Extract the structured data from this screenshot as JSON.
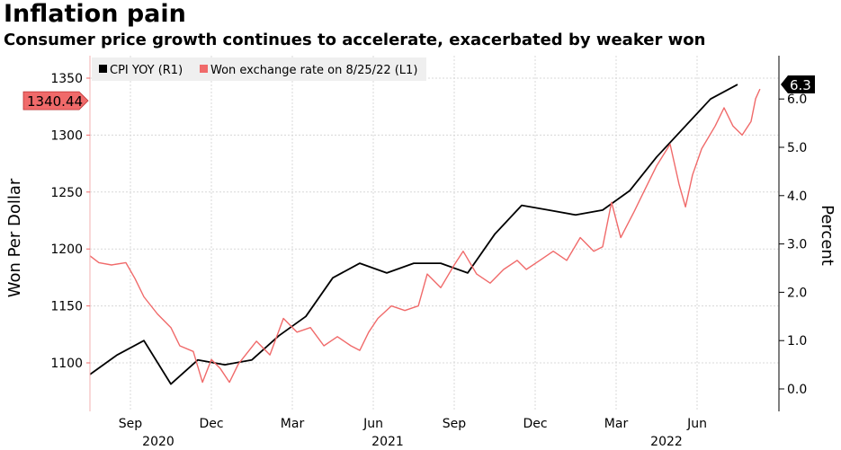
{
  "chart_data": {
    "type": "line",
    "title": "Inflation pain",
    "subtitle": "Consumer price growth continues to accelerate, exacerbated by weaker won",
    "x_unit": "months since mid-July 2020",
    "x_ticks": [
      {
        "label": "Sep",
        "x": 1.5
      },
      {
        "label": "Dec",
        "x": 4.5
      },
      {
        "label": "Mar",
        "x": 7.5
      },
      {
        "label": "Jun",
        "x": 10.5
      },
      {
        "label": "Sep",
        "x": 13.5
      },
      {
        "label": "Dec",
        "x": 16.5
      },
      {
        "label": "Mar",
        "x": 19.5
      },
      {
        "label": "Jun",
        "x": 22.5
      }
    ],
    "year_labels": [
      "2020",
      "2021",
      "2022"
    ],
    "xlim": [
      0,
      25.5
    ],
    "left_axis": {
      "label": "Won Per Dollar",
      "ylim": [
        1070,
        1360
      ],
      "ticks": [
        1100,
        1150,
        1200,
        1250,
        1300,
        1350
      ]
    },
    "right_axis": {
      "label": "Percent",
      "ylim": [
        -0.3,
        6.6
      ],
      "ticks": [
        "0.0",
        "1.0",
        "2.0",
        "3.0",
        "4.0",
        "5.0",
        "6.0"
      ]
    },
    "grid": true,
    "legend_position": "top-left",
    "series": [
      {
        "name": "CPI YOY (R1)",
        "axis": "right",
        "color": "#000000",
        "last_label": "6.3",
        "points": [
          [
            0,
            0.3
          ],
          [
            1,
            0.7
          ],
          [
            2,
            1.0
          ],
          [
            3,
            0.1
          ],
          [
            4,
            0.6
          ],
          [
            5,
            0.5
          ],
          [
            6,
            0.6
          ],
          [
            7,
            1.1
          ],
          [
            8,
            1.5
          ],
          [
            9,
            2.3
          ],
          [
            10,
            2.6
          ],
          [
            11,
            2.4
          ],
          [
            12,
            2.6
          ],
          [
            13,
            2.6
          ],
          [
            14,
            2.4
          ],
          [
            15,
            3.2
          ],
          [
            16,
            3.8
          ],
          [
            17,
            3.7
          ],
          [
            18,
            3.6
          ],
          [
            19,
            3.7
          ],
          [
            20,
            4.1
          ],
          [
            21,
            4.8
          ],
          [
            22,
            5.4
          ],
          [
            23,
            6.0
          ],
          [
            24,
            6.3
          ]
        ]
      },
      {
        "name": "Won exchange rate on 8/25/22 (L1)",
        "axis": "left",
        "color": "#f06a6a",
        "last_label": "1340.44",
        "points": [
          [
            0,
            1194
          ],
          [
            0.33,
            1188
          ],
          [
            0.8,
            1186
          ],
          [
            1.33,
            1188
          ],
          [
            1.67,
            1174
          ],
          [
            2,
            1158
          ],
          [
            2.5,
            1143
          ],
          [
            3,
            1131
          ],
          [
            3.33,
            1115
          ],
          [
            3.83,
            1110
          ],
          [
            4.17,
            1083
          ],
          [
            4.5,
            1103
          ],
          [
            4.83,
            1095
          ],
          [
            5.17,
            1083
          ],
          [
            5.5,
            1099
          ],
          [
            6.17,
            1119
          ],
          [
            6.67,
            1107
          ],
          [
            7.17,
            1139
          ],
          [
            7.67,
            1127
          ],
          [
            8.17,
            1131
          ],
          [
            8.67,
            1115
          ],
          [
            9.17,
            1123
          ],
          [
            9.67,
            1115
          ],
          [
            10,
            1111
          ],
          [
            10.33,
            1127
          ],
          [
            10.67,
            1139
          ],
          [
            11.17,
            1150
          ],
          [
            11.67,
            1146
          ],
          [
            12.17,
            1150
          ],
          [
            12.5,
            1178
          ],
          [
            13,
            1166
          ],
          [
            13.5,
            1186
          ],
          [
            13.83,
            1198
          ],
          [
            14.33,
            1178
          ],
          [
            14.83,
            1170
          ],
          [
            15.33,
            1182
          ],
          [
            15.83,
            1190
          ],
          [
            16.17,
            1182
          ],
          [
            16.67,
            1190
          ],
          [
            17.17,
            1198
          ],
          [
            17.67,
            1190
          ],
          [
            18.17,
            1210
          ],
          [
            18.67,
            1198
          ],
          [
            19,
            1202
          ],
          [
            19.33,
            1241
          ],
          [
            19.67,
            1210
          ],
          [
            20.17,
            1233
          ],
          [
            20.5,
            1249
          ],
          [
            21,
            1273
          ],
          [
            21.5,
            1292
          ],
          [
            21.83,
            1257
          ],
          [
            22.07,
            1237
          ],
          [
            22.33,
            1265
          ],
          [
            22.67,
            1288
          ],
          [
            23.17,
            1308
          ],
          [
            23.5,
            1324
          ],
          [
            23.83,
            1308
          ],
          [
            24.17,
            1300
          ],
          [
            24.5,
            1312
          ],
          [
            24.67,
            1332
          ],
          [
            24.83,
            1340.44
          ]
        ]
      }
    ]
  }
}
